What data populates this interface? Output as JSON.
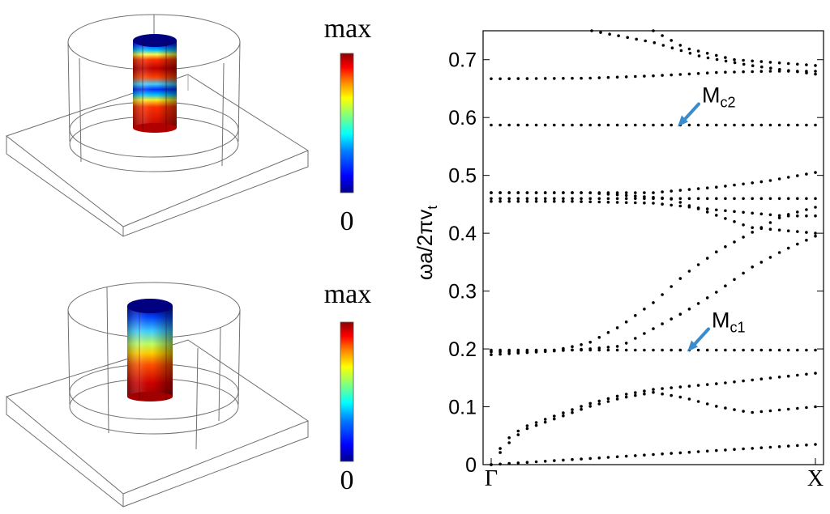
{
  "colorbars": {
    "top": {
      "max_label": "max",
      "min_label": "0"
    },
    "bottom": {
      "max_label": "max",
      "min_label": "0"
    }
  },
  "colormap": [
    "#00008c",
    "#0000ff",
    "#0080ff",
    "#00ffff",
    "#80ff80",
    "#ffff00",
    "#ff8000",
    "#ff0000",
    "#8c0000"
  ],
  "chart_data": {
    "type": "scatter",
    "title": "",
    "ylabel": "ωa/2πv_t",
    "xlabel": "",
    "x_tick_labels": [
      "Γ",
      "X"
    ],
    "x": [
      0,
      1
    ],
    "y_ticks": [
      0,
      0.1,
      0.2,
      0.3,
      0.4,
      0.5,
      0.6,
      0.7
    ],
    "ylim": [
      0,
      0.75
    ],
    "xlim": [
      0,
      1
    ],
    "marker": "dot",
    "color": "#000000",
    "grid": false,
    "series": [
      {
        "points": [
          [
            0,
            0
          ],
          [
            1,
            0.035
          ]
        ]
      },
      {
        "points": [
          [
            0,
            0
          ],
          [
            0.04,
            0.03
          ],
          [
            0.1,
            0.06
          ],
          [
            0.2,
            0.08
          ],
          [
            0.3,
            0.1
          ],
          [
            0.4,
            0.115
          ],
          [
            0.5,
            0.125
          ],
          [
            0.6,
            0.115
          ],
          [
            0.7,
            0.1
          ],
          [
            0.8,
            0.09
          ],
          [
            1,
            0.1
          ]
        ]
      },
      {
        "points": [
          [
            0,
            0
          ],
          [
            0.04,
            0.04
          ],
          [
            0.1,
            0.065
          ],
          [
            0.2,
            0.085
          ],
          [
            0.3,
            0.105
          ],
          [
            0.4,
            0.12
          ],
          [
            0.5,
            0.13
          ],
          [
            0.7,
            0.14
          ],
          [
            1,
            0.158
          ]
        ]
      },
      {
        "points": [
          [
            0,
            0.19
          ],
          [
            0.3,
            0.2
          ],
          [
            0.4,
            0.205
          ],
          [
            0.5,
            0.235
          ],
          [
            0.6,
            0.265
          ],
          [
            0.7,
            0.3
          ],
          [
            0.8,
            0.34
          ],
          [
            0.9,
            0.37
          ],
          [
            1,
            0.395
          ]
        ]
      },
      {
        "points": [
          [
            0,
            0.195
          ],
          [
            0.1,
            0.195
          ],
          [
            0.2,
            0.198
          ],
          [
            0.3,
            0.21
          ],
          [
            0.4,
            0.24
          ],
          [
            0.5,
            0.28
          ],
          [
            0.6,
            0.33
          ],
          [
            0.7,
            0.37
          ],
          [
            0.8,
            0.4
          ],
          [
            0.9,
            0.43
          ],
          [
            1,
            0.445
          ]
        ]
      },
      {
        "points": [
          [
            0,
            0.198
          ],
          [
            1,
            0.198
          ]
        ]
      },
      {
        "points": [
          [
            0,
            0.455
          ],
          [
            0.25,
            0.455
          ],
          [
            0.5,
            0.452
          ],
          [
            0.7,
            0.44
          ],
          [
            0.9,
            0.43
          ],
          [
            1,
            0.43
          ]
        ]
      },
      {
        "points": [
          [
            0,
            0.46
          ],
          [
            1,
            0.46
          ]
        ]
      },
      {
        "points": [
          [
            0,
            0.47
          ],
          [
            0.3,
            0.47
          ],
          [
            0.55,
            0.46
          ],
          [
            0.65,
            0.44
          ],
          [
            0.8,
            0.41
          ],
          [
            1,
            0.4
          ]
        ]
      },
      {
        "points": [
          [
            0,
            0.47
          ],
          [
            0.5,
            0.47
          ],
          [
            0.7,
            0.48
          ],
          [
            0.85,
            0.49
          ],
          [
            1,
            0.505
          ]
        ]
      },
      {
        "points": [
          [
            0,
            0.587
          ],
          [
            1,
            0.587
          ]
        ]
      },
      {
        "points": [
          [
            0,
            0.667
          ],
          [
            0.3,
            0.668
          ],
          [
            0.5,
            0.672
          ],
          [
            0.7,
            0.678
          ],
          [
            0.85,
            0.68
          ],
          [
            1,
            0.68
          ]
        ]
      },
      {
        "points": [
          [
            0.31,
            0.75
          ],
          [
            0.5,
            0.73
          ],
          [
            0.65,
            0.705
          ],
          [
            0.8,
            0.69
          ],
          [
            1,
            0.675
          ]
        ]
      },
      {
        "points": [
          [
            0.5,
            0.75
          ],
          [
            0.6,
            0.72
          ],
          [
            0.75,
            0.7
          ],
          [
            1,
            0.69
          ]
        ]
      }
    ],
    "annotations": [
      {
        "main": "M",
        "sub": "c2",
        "x": 0.58,
        "y": 0.587
      },
      {
        "main": "M",
        "sub": "c1",
        "x": 0.61,
        "y": 0.198
      }
    ]
  }
}
